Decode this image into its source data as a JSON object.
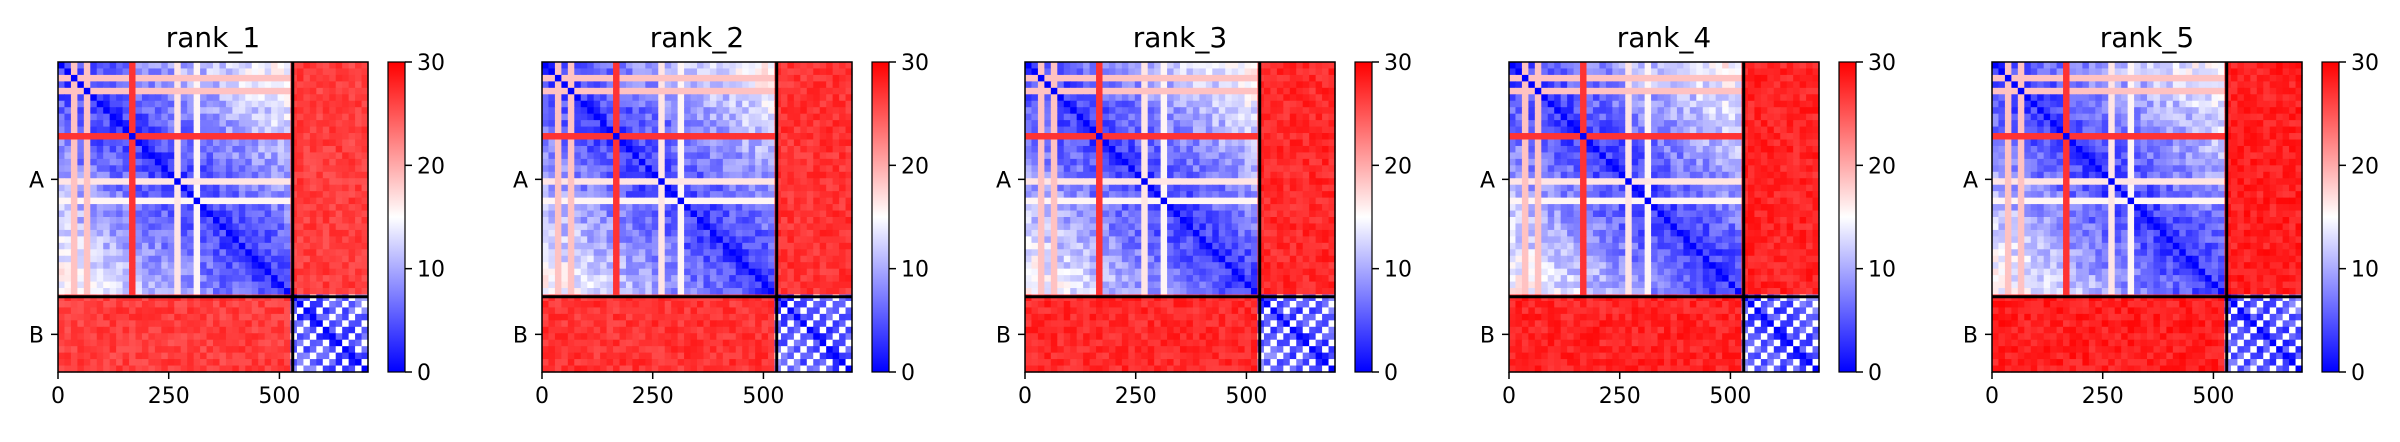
{
  "chart_data": [
    {
      "type": "heatmap",
      "title": "rank_1",
      "x_ticks": [
        0,
        250,
        500
      ],
      "y_categories": [
        "A",
        "B"
      ],
      "xlim": [
        0,
        700
      ],
      "chain_boundary": 530,
      "colorbar": {
        "range": [
          0,
          30
        ],
        "ticks": [
          0,
          10,
          20,
          30
        ],
        "colormap": "bwr"
      },
      "inter_chain_level": 0.93
    },
    {
      "type": "heatmap",
      "title": "rank_2",
      "x_ticks": [
        0,
        250,
        500
      ],
      "y_categories": [
        "A",
        "B"
      ],
      "xlim": [
        0,
        700
      ],
      "chain_boundary": 530,
      "colorbar": {
        "range": [
          0,
          30
        ],
        "ticks": [
          0,
          10,
          20,
          30
        ],
        "colormap": "bwr"
      },
      "inter_chain_level": 0.95
    },
    {
      "type": "heatmap",
      "title": "rank_3",
      "x_ticks": [
        0,
        250,
        500
      ],
      "y_categories": [
        "A",
        "B"
      ],
      "xlim": [
        0,
        700
      ],
      "chain_boundary": 530,
      "colorbar": {
        "range": [
          0,
          30
        ],
        "ticks": [
          0,
          10,
          20,
          30
        ],
        "colormap": "bwr"
      },
      "inter_chain_level": 0.97
    },
    {
      "type": "heatmap",
      "title": "rank_4",
      "x_ticks": [
        0,
        250,
        500
      ],
      "y_categories": [
        "A",
        "B"
      ],
      "xlim": [
        0,
        700
      ],
      "chain_boundary": 530,
      "colorbar": {
        "range": [
          0,
          30
        ],
        "ticks": [
          0,
          10,
          20,
          30
        ],
        "colormap": "bwr"
      },
      "inter_chain_level": 0.98
    },
    {
      "type": "heatmap",
      "title": "rank_5",
      "x_ticks": [
        0,
        250,
        500
      ],
      "y_categories": [
        "A",
        "B"
      ],
      "xlim": [
        0,
        700
      ],
      "chain_boundary": 530,
      "colorbar": {
        "range": [
          0,
          30
        ],
        "ticks": [
          0,
          10,
          20,
          30
        ],
        "colormap": "bwr"
      },
      "inter_chain_level": 0.99
    }
  ]
}
